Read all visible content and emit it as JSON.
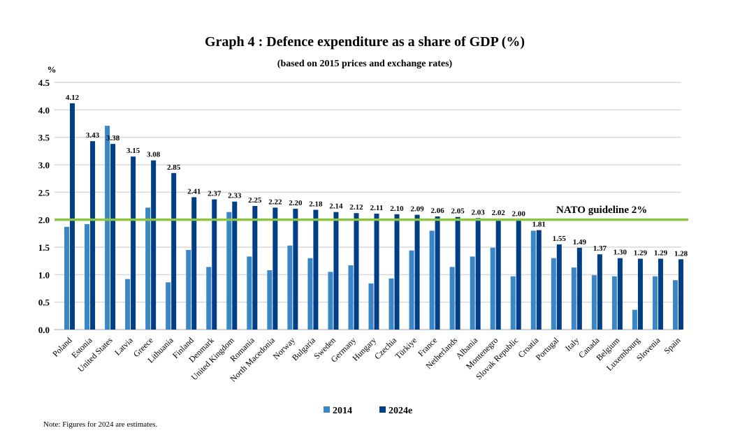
{
  "chart_data": {
    "type": "bar",
    "title": "Graph 4 : Defence expenditure as a share of GDP (%)",
    "subtitle": "(based on 2015 prices and exchange rates)",
    "ylabel": "%",
    "ylim": [
      0,
      4.5
    ],
    "yticks": [
      "0.0",
      "0.5",
      "1.0",
      "1.5",
      "2.0",
      "2.5",
      "3.0",
      "3.5",
      "4.0",
      "4.5"
    ],
    "grid": true,
    "legend_position": "bottom",
    "categories": [
      "Poland",
      "Estonia",
      "United States",
      "Latvia",
      "Greece",
      "Lithuania",
      "Finland",
      "Denmark",
      "United Kingdom",
      "Romania",
      "North Macedonia",
      "Norway",
      "Bulgaria",
      "Sweden",
      "Germany",
      "Hungary",
      "Czechia",
      "Türkiye",
      "France",
      "Netherlands",
      "Albania",
      "Montenegro",
      "Slovak Republic",
      "Croatia",
      "Portugal",
      "Italy",
      "Canada",
      "Belgium",
      "Luxembourg",
      "Slovenia",
      "Spain"
    ],
    "series": [
      {
        "name": "2014",
        "color": "#3A87C8",
        "values": [
          1.87,
          1.92,
          3.71,
          0.92,
          2.22,
          0.86,
          1.45,
          1.14,
          2.14,
          1.33,
          1.08,
          1.53,
          1.3,
          1.05,
          1.17,
          0.84,
          0.93,
          1.44,
          1.8,
          1.14,
          1.33,
          1.49,
          0.97,
          1.8,
          1.3,
          1.13,
          0.99,
          0.97,
          0.36,
          0.97,
          0.9
        ]
      },
      {
        "name": "2024e",
        "color": "#003F87",
        "values": [
          4.12,
          3.43,
          3.38,
          3.15,
          3.08,
          2.85,
          2.41,
          2.37,
          2.33,
          2.25,
          2.22,
          2.2,
          2.18,
          2.14,
          2.12,
          2.11,
          2.1,
          2.09,
          2.06,
          2.05,
          2.03,
          2.02,
          2.0,
          1.81,
          1.55,
          1.49,
          1.37,
          1.3,
          1.29,
          1.29,
          1.28
        ],
        "labels": [
          "4.12",
          "3.43",
          "3.38",
          "3.15",
          "3.08",
          "2.85",
          "2.41",
          "2.37",
          "2.33",
          "2.25",
          "2.22",
          "2.20",
          "2.18",
          "2.14",
          "2.12",
          "2.11",
          "2.10",
          "2.09",
          "2.06",
          "2.05",
          "2.03",
          "2.02",
          "2.00",
          "1.81",
          "1.55",
          "1.49",
          "1.37",
          "1.30",
          "1.29",
          "1.29",
          "1.28"
        ]
      }
    ],
    "reference_line": {
      "value": 2.0,
      "label": "NATO guideline 2%",
      "color": "#8CC63F"
    },
    "note": "Note: Figures for 2024 are estimates."
  }
}
